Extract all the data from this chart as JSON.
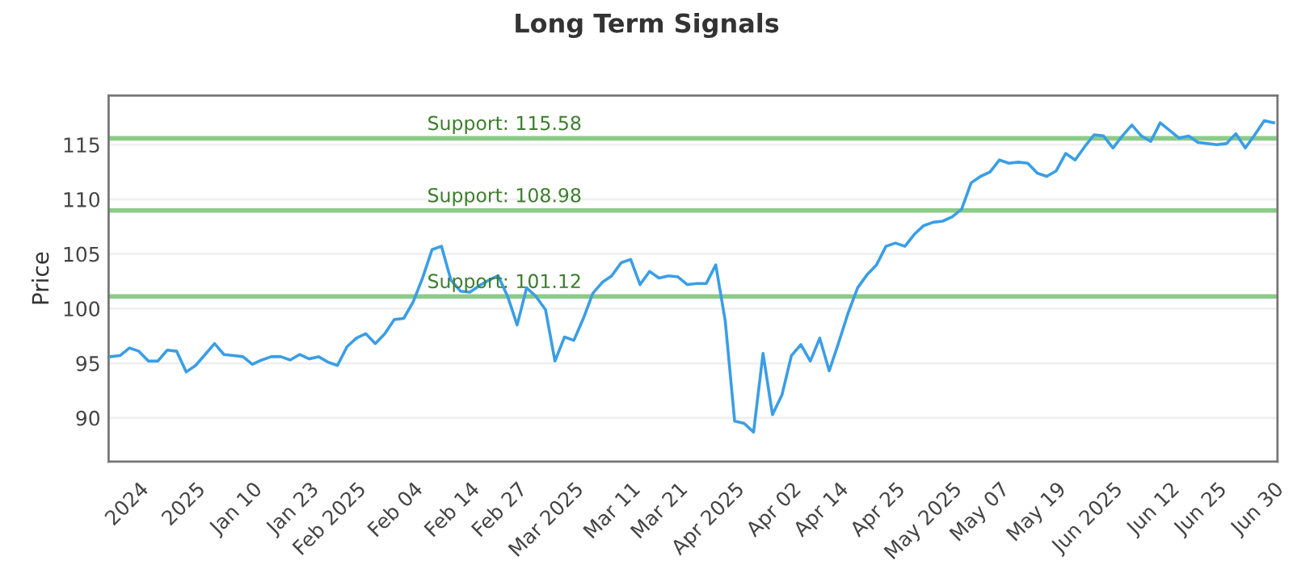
{
  "chart_data": {
    "type": "line",
    "title": "Long Term Signals",
    "ylabel": "Price",
    "categories": [
      null,
      null,
      null,
      "2024",
      null,
      null,
      null,
      null,
      null,
      "2025",
      null,
      null,
      null,
      null,
      null,
      "Jan 10",
      null,
      null,
      null,
      null,
      null,
      "Jan 23",
      null,
      null,
      null,
      null,
      "Feb 2025",
      null,
      null,
      null,
      null,
      null,
      "Feb 04",
      null,
      null,
      null,
      null,
      null,
      "Feb 14",
      null,
      null,
      null,
      null,
      "Feb 27",
      null,
      null,
      null,
      null,
      null,
      "Mar 2025",
      null,
      null,
      null,
      null,
      null,
      "Mar 11",
      null,
      null,
      null,
      null,
      "Mar 21",
      null,
      null,
      null,
      null,
      null,
      "Apr 2025",
      null,
      null,
      null,
      null,
      null,
      "Apr 02",
      null,
      null,
      null,
      null,
      "Apr 14",
      null,
      null,
      null,
      null,
      null,
      "Apr 25",
      null,
      null,
      null,
      null,
      null,
      "May 2025",
      null,
      null,
      null,
      null,
      "May 07",
      null,
      null,
      null,
      null,
      null,
      "May 19",
      null,
      null,
      null,
      null,
      null,
      "Jun 2025",
      null,
      null,
      null,
      null,
      null,
      "Jun 12",
      null,
      null,
      null,
      null,
      "Jun 25",
      null,
      null,
      null,
      null,
      null,
      "Jun 30"
    ],
    "series": [
      {
        "color": "#3a9ee6",
        "values": [
          95.6,
          95.7,
          96.4,
          96.1,
          95.2,
          95.2,
          96.2,
          96.1,
          94.2,
          94.8,
          95.8,
          96.8,
          95.8,
          95.7,
          95.6,
          94.9,
          95.3,
          95.6,
          95.6,
          95.3,
          95.8,
          95.4,
          95.6,
          95.1,
          94.8,
          96.5,
          97.3,
          97.7,
          96.8,
          97.7,
          99.0,
          99.1,
          100.6,
          102.8,
          105.4,
          105.7,
          102.6,
          101.6,
          101.5,
          102.1,
          102.6,
          103.0,
          101.1,
          98.5,
          101.9,
          101.1,
          99.9,
          95.2,
          97.4,
          97.1,
          99.1,
          101.4,
          102.4,
          103.0,
          104.2,
          104.5,
          102.2,
          103.4,
          102.8,
          103.0,
          102.9,
          102.2,
          102.3,
          102.3,
          104.0,
          98.9,
          89.7,
          89.5,
          88.7,
          95.9,
          90.3,
          92.1,
          95.7,
          96.7,
          95.2,
          97.3,
          94.3,
          96.9,
          99.6,
          101.9,
          103.1,
          104.0,
          105.7,
          106.0,
          105.7,
          106.8,
          107.6,
          107.9,
          108.0,
          108.4,
          109.1,
          111.5,
          112.1,
          112.5,
          113.6,
          113.3,
          113.4,
          113.3,
          112.4,
          112.1,
          112.6,
          114.2,
          113.6,
          114.8,
          115.9,
          115.8,
          114.7,
          115.8,
          116.8,
          115.8,
          115.3,
          117.0,
          116.3,
          115.6,
          115.8,
          115.2,
          115.1,
          115.0,
          115.1,
          116.0,
          114.7,
          115.9,
          117.2,
          117.0
        ]
      }
    ],
    "ylim": [
      86,
      119.5
    ],
    "yticks": [
      90,
      95,
      100,
      105,
      110,
      115
    ],
    "grid": "y",
    "marker": "none",
    "line_style": "solid",
    "ref_lines": [
      {
        "axis": "y",
        "value": 115.58,
        "label": "Support: 115.58",
        "color": "#8ccb88"
      },
      {
        "axis": "y",
        "value": 108.98,
        "label": "Support: 108.98",
        "color": "#8ccb88"
      },
      {
        "axis": "y",
        "value": 101.12,
        "label": "Support: 101.12",
        "color": "#8ccb88"
      }
    ]
  }
}
